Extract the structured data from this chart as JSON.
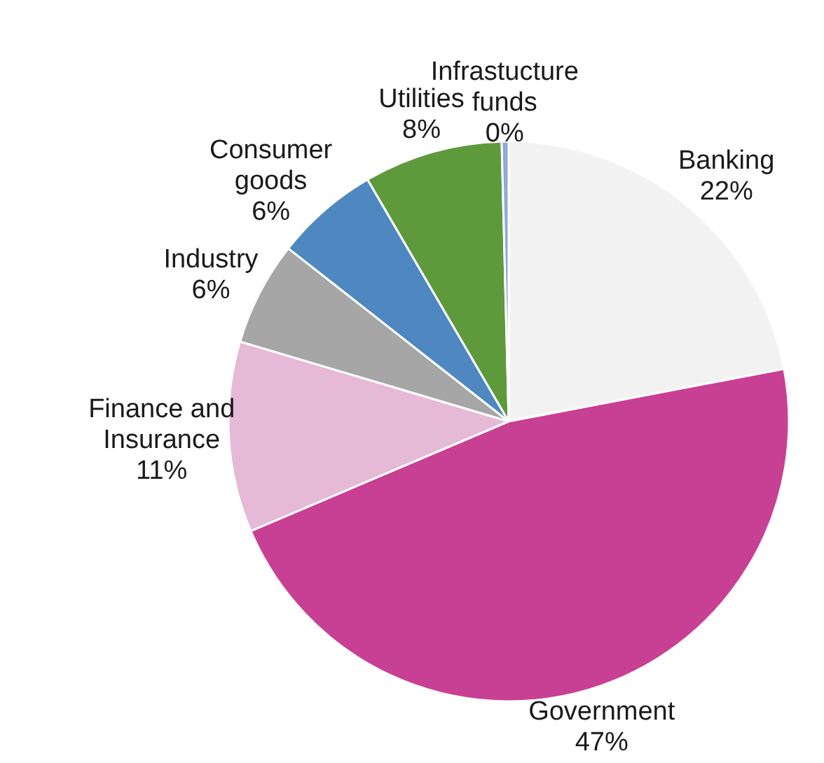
{
  "chart_data": {
    "type": "pie",
    "categories": [
      "Banking",
      "Government",
      "Finance and Insurance",
      "Industry",
      "Consumer goods",
      "Utilities",
      "Infrastucture funds"
    ],
    "values": [
      22,
      46.6,
      11,
      6,
      6,
      8,
      0.4
    ],
    "value_labels": [
      "22%",
      "47%",
      "11%",
      "6%",
      "6%",
      "8%",
      "0%"
    ],
    "colors": [
      "#f2f2f2",
      "#c84093",
      "#e6b9d6",
      "#a6a6a6",
      "#4f88c0",
      "#5e9a3c",
      "#8ea9db"
    ]
  }
}
